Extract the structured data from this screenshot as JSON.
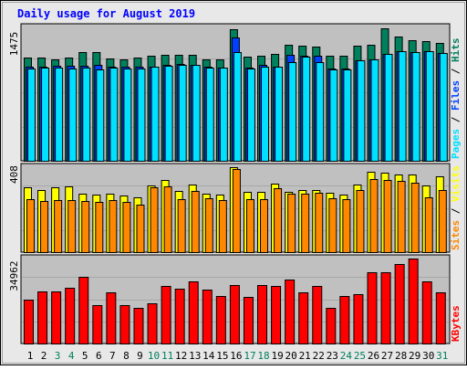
{
  "chart_data": {
    "type": "bar",
    "title": "Daily usage for August 2019",
    "days": [
      "1",
      "2",
      "3",
      "4",
      "5",
      "6",
      "7",
      "8",
      "9",
      "10",
      "11",
      "12",
      "13",
      "14",
      "15",
      "16",
      "17",
      "18",
      "19",
      "20",
      "21",
      "22",
      "23",
      "24",
      "25",
      "26",
      "27",
      "28",
      "29",
      "30",
      "31"
    ],
    "weekend_days": [
      3,
      4,
      10,
      11,
      17,
      18,
      24,
      25,
      31
    ],
    "panels": [
      {
        "name": "hits",
        "max_label": "1475",
        "ymax": 1475,
        "legend": [
          "Pages",
          "Files",
          "Hits"
        ],
        "series": [
          {
            "name": "Hits",
            "values": [
              1160,
              1165,
              1140,
              1160,
              1225,
              1225,
              1150,
              1140,
              1160,
              1180,
              1195,
              1195,
              1200,
              1140,
              1140,
              1480,
              1170,
              1185,
              1205,
              1305,
              1300,
              1290,
              1180,
              1180,
              1300,
              1305,
              1495,
              1400,
              1365,
              1345,
              1330
            ]
          },
          {
            "name": "Files",
            "values": [
              1060,
              1065,
              1075,
              1075,
              1070,
              1080,
              1060,
              1060,
              1060,
              1065,
              1080,
              1090,
              1085,
              1060,
              1055,
              1395,
              1050,
              1080,
              1065,
              1195,
              1180,
              1180,
              1040,
              1040,
              1135,
              1140,
              1210,
              1240,
              1230,
              1240,
              1215
            ]
          },
          {
            "name": "Pages",
            "values": [
              1040,
              1050,
              1050,
              1040,
              1055,
              1035,
              1050,
              1040,
              1040,
              1060,
              1075,
              1080,
              1080,
              1050,
              1050,
              1225,
              1040,
              1060,
              1060,
              1110,
              1170,
              1110,
              1030,
              1035,
              1135,
              1140,
              1210,
              1235,
              1225,
              1240,
              1215
            ]
          }
        ]
      },
      {
        "name": "visits",
        "max_label": "408",
        "ymax": 408,
        "legend": [
          "Sites",
          "Visits"
        ],
        "series": [
          {
            "name": "Visits",
            "values": [
              310,
              300,
              310,
              315,
              280,
              275,
              280,
              270,
              265,
              320,
              345,
              295,
              325,
              280,
              275,
              408,
              290,
              290,
              330,
              290,
              300,
              300,
              285,
              275,
              325,
              385,
              380,
              375,
              375,
              320,
              365
            ]
          },
          {
            "name": "Sites",
            "values": [
              255,
              245,
              250,
              250,
              245,
              240,
              250,
              240,
              230,
              310,
              315,
              255,
              295,
              260,
              250,
              400,
              255,
              255,
              305,
              280,
              280,
              285,
              260,
              255,
              300,
              350,
              345,
              340,
              335,
              265,
              300
            ]
          }
        ]
      },
      {
        "name": "kbytes",
        "max_label": "34962",
        "ymax": 34962,
        "legend": [
          "KBytes"
        ],
        "series": [
          {
            "name": "KBytes",
            "values": [
              18000,
              21500,
              21500,
              23000,
              27300,
              15700,
              21000,
              15700,
              14500,
              16500,
              23500,
              22500,
              25500,
              22000,
              19500,
              24200,
              19300,
              24000,
              23500,
              26300,
              21000,
              23700,
              14600,
              19700,
              20200,
              29200,
              29300,
              32700,
              35000,
              25700,
              21000
            ]
          }
        ]
      }
    ],
    "colors": {
      "hits": "#00805c",
      "files": "#0040ff",
      "pages": "#00e0ff",
      "visits": "#ffff00",
      "sites": "#ff8800",
      "kbytes": "#ff0000",
      "title": "#0000ff",
      "weekend": "#00805c",
      "weekday": "#000000",
      "panel_bg": "#c0c0c0",
      "frame": "#e8e8e8"
    }
  }
}
